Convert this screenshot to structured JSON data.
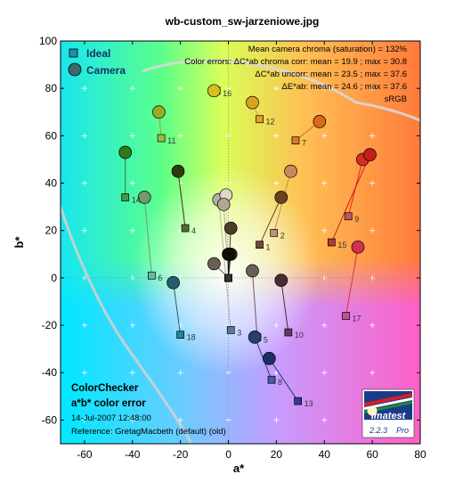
{
  "chart_data": {
    "type": "scatter",
    "title": "wb-custom_sw-jarzeniowe.jpg",
    "xlabel": "a*",
    "ylabel": "b*",
    "xlim": [
      -70,
      80
    ],
    "ylim": [
      -70,
      100
    ],
    "xticks": [
      -60,
      -40,
      -20,
      0,
      20,
      40,
      60,
      80
    ],
    "yticks": [
      -60,
      -40,
      -20,
      0,
      20,
      40,
      60,
      80,
      100
    ],
    "grid": true,
    "legend": {
      "position": "top-left",
      "ideal_label": "Ideal",
      "camera_label": "Camera"
    },
    "info_lines": [
      "Mean camera chroma (saturation) = 132%",
      "Color errors: ΔC*ab chroma corr:  mean = 19.9 ;  max = 30.8",
      "ΔC*ab uncorr:  mean = 23.5 ;  max = 37.6",
      "ΔE*ab:  mean = 24.6 ;  max = 37.6",
      "sRGB"
    ],
    "bottom_text": [
      "ColorChecker",
      "a*b* color error",
      "14-Jul-2007 12:48:00",
      "Reference: GretagMacbeth (default) (old)"
    ],
    "logo": {
      "name": "Imatest",
      "version": "2.2.3",
      "edition": "Pro"
    },
    "patches": [
      {
        "id": 1,
        "ideal": [
          13,
          14
        ],
        "camera": [
          22,
          34
        ],
        "ideal_color": "#6e4a3a",
        "camera_color": "#6b4222"
      },
      {
        "id": 2,
        "ideal": [
          19,
          19
        ],
        "camera": [
          26,
          45
        ],
        "ideal_color": "#c09080",
        "camera_color": "#c8885a"
      },
      {
        "id": 3,
        "ideal": [
          1,
          -22
        ],
        "camera": [
          -4,
          33
        ],
        "ideal_color": "#5c7aa0",
        "camera_color": "#b5b0a6"
      },
      {
        "id": 4,
        "ideal": [
          -18,
          21
        ],
        "camera": [
          -21,
          45
        ],
        "ideal_color": "#57673a",
        "camera_color": "#2e3a0d"
      },
      {
        "id": 5,
        "ideal": [
          12,
          -25
        ],
        "camera": [
          10,
          3
        ],
        "ideal_color": "#7c78aa",
        "camera_color": "#6b5d58"
      },
      {
        "id": 6,
        "ideal": [
          -32,
          1
        ],
        "camera": [
          -35,
          34
        ],
        "ideal_color": "#65b8a6",
        "camera_color": "#6f9a72"
      },
      {
        "id": 7,
        "ideal": [
          28,
          58
        ],
        "camera": [
          38,
          66
        ],
        "ideal_color": "#db7a2e",
        "camera_color": "#d86a1a"
      },
      {
        "id": 8,
        "ideal": [
          18,
          -43
        ],
        "camera": [
          11,
          -25
        ],
        "ideal_color": "#4a58a3",
        "camera_color": "#2a3f6d"
      },
      {
        "id": 9,
        "ideal": [
          50,
          26
        ],
        "camera": [
          56,
          50
        ],
        "ideal_color": "#c2555f",
        "camera_color": "#d82c20"
      },
      {
        "id": 10,
        "ideal": [
          25,
          -23
        ],
        "camera": [
          22,
          -1
        ],
        "ideal_color": "#5e3a6b",
        "camera_color": "#4a2b32"
      },
      {
        "id": 11,
        "ideal": [
          -28,
          59
        ],
        "camera": [
          -29,
          70
        ],
        "ideal_color": "#a0bb3e",
        "camera_color": "#9aa92a"
      },
      {
        "id": 12,
        "ideal": [
          13,
          67
        ],
        "camera": [
          10,
          74
        ],
        "ideal_color": "#e4a12e",
        "camera_color": "#d8a420"
      },
      {
        "id": 13,
        "ideal": [
          29,
          -52
        ],
        "camera": [
          17,
          -34
        ],
        "ideal_color": "#2e3c90",
        "camera_color": "#1d2f66"
      },
      {
        "id": 14,
        "ideal": [
          -43,
          34
        ],
        "camera": [
          -43,
          53
        ],
        "ideal_color": "#489848",
        "camera_color": "#2f7a1e"
      },
      {
        "id": 15,
        "ideal": [
          43,
          15
        ],
        "camera": [
          59,
          52
        ],
        "ideal_color": "#b03a33",
        "camera_color": "#c81e1a"
      },
      {
        "id": 16,
        "ideal": [
          -5,
          79
        ],
        "camera": [
          -6,
          79
        ],
        "ideal_color": "#ecc63a",
        "camera_color": "#d4bf22"
      },
      {
        "id": 17,
        "ideal": [
          49,
          -16
        ],
        "camera": [
          54,
          13
        ],
        "ideal_color": "#be5496",
        "camera_color": "#d4304e"
      },
      {
        "id": 18,
        "ideal": [
          -20,
          -24
        ],
        "camera": [
          -23,
          -2
        ],
        "ideal_color": "#1e88a4",
        "camera_color": "#1f5e6a"
      },
      {
        "id": 19,
        "ideal": [
          0,
          0
        ],
        "camera": [
          -1,
          35
        ],
        "ideal_color": "#f4f4f0",
        "camera_color": "#ded6c4"
      },
      {
        "id": 20,
        "ideal": [
          0,
          0
        ],
        "camera": [
          -2,
          31
        ],
        "ideal_color": "#c8c8c8",
        "camera_color": "#b0a890"
      },
      {
        "id": 21,
        "ideal": [
          0,
          0
        ],
        "camera": [
          1,
          21
        ],
        "ideal_color": "#a0a0a0",
        "camera_color": "#4a3e26"
      },
      {
        "id": 22,
        "ideal": [
          0,
          0
        ],
        "camera": [
          1,
          10
        ],
        "ideal_color": "#7a7a7a",
        "camera_color": "#2a2418"
      },
      {
        "id": 23,
        "ideal": [
          0,
          0
        ],
        "camera": [
          -6,
          6
        ],
        "ideal_color": "#555555",
        "camera_color": "#6a6050"
      },
      {
        "id": 24,
        "ideal": [
          0,
          0
        ],
        "camera": [
          0,
          10
        ],
        "ideal_color": "#333333",
        "camera_color": "#101008"
      }
    ]
  }
}
